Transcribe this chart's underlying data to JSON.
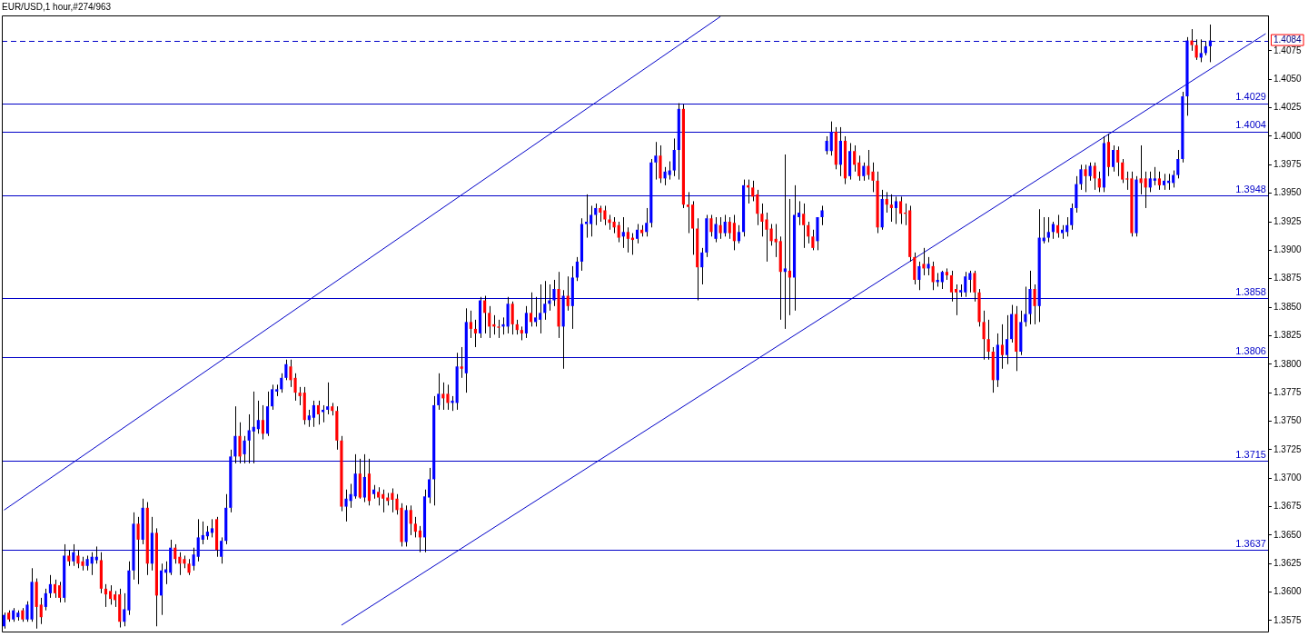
{
  "chart_data": {
    "type": "candlestick",
    "title": "EUR/USD,1 hour,#274/963",
    "categories": [
      null,
      null,
      null,
      null,
      null,
      null,
      null,
      null,
      null,
      null,
      null,
      null,
      null,
      null,
      null,
      null,
      null,
      null,
      null,
      null,
      null,
      null,
      null,
      null,
      null,
      null,
      null,
      null,
      null,
      null,
      null,
      null,
      null,
      null,
      null,
      null,
      null,
      null,
      null,
      null,
      null,
      null,
      null,
      null,
      null,
      null,
      null,
      null,
      null,
      null,
      null,
      null,
      null,
      null,
      null,
      null,
      null,
      null,
      null,
      null,
      null,
      null,
      null,
      null,
      null,
      null,
      null,
      null,
      null,
      null,
      null,
      null,
      null,
      null,
      null,
      null,
      null,
      null,
      null,
      null,
      null,
      null,
      null,
      null,
      null,
      null,
      null,
      null,
      null,
      null,
      null,
      null,
      null,
      null,
      null,
      null,
      null,
      null,
      null,
      null,
      null,
      null,
      null,
      null,
      null,
      null,
      null,
      null,
      null,
      null,
      null,
      null,
      null,
      null,
      null,
      null,
      null,
      null,
      null,
      null,
      null,
      null,
      null,
      null,
      null,
      null,
      null,
      null,
      null,
      null,
      null,
      null,
      null,
      null,
      null,
      null,
      null,
      null,
      null,
      null,
      null,
      null,
      null,
      null,
      null,
      null,
      null,
      null,
      null,
      null,
      null,
      null,
      null,
      null,
      null,
      null,
      null,
      null,
      null,
      null,
      null,
      null,
      null,
      null,
      null,
      null,
      null,
      null,
      null,
      null,
      null,
      null,
      null,
      null,
      null,
      null,
      null,
      null,
      null,
      null,
      null,
      null,
      null,
      null,
      null,
      null,
      null,
      null,
      null,
      null,
      null,
      null,
      null,
      null,
      null,
      null,
      null,
      null,
      null,
      null,
      null,
      null,
      null,
      null,
      null,
      null,
      null,
      null,
      null,
      null,
      null,
      null,
      null,
      null,
      null,
      null,
      null,
      null,
      null,
      null,
      null,
      null,
      null,
      null,
      null,
      null,
      null,
      null,
      null,
      null,
      null,
      null,
      null,
      null,
      null,
      null,
      null,
      null,
      null,
      null,
      null,
      null,
      null,
      null,
      null,
      null,
      null,
      null,
      null,
      null,
      null,
      null,
      null,
      null,
      null,
      null,
      null,
      null,
      null,
      null,
      null,
      null,
      null,
      null,
      null,
      null,
      null,
      null,
      null,
      null,
      null,
      null,
      null,
      null
    ],
    "ohlc": [
      [
        1.357,
        1.3582,
        1.3568,
        1.358
      ],
      [
        1.3582,
        1.3584,
        1.3574,
        1.3576
      ],
      [
        1.3576,
        1.3586,
        1.3574,
        1.3584
      ],
      [
        1.3578,
        1.3584,
        1.3575,
        1.3582
      ],
      [
        1.3584,
        1.3586,
        1.3574,
        1.3576
      ],
      [
        1.3576,
        1.3592,
        1.3574,
        1.3589
      ],
      [
        1.3576,
        1.3621,
        1.3574,
        1.3609
      ],
      [
        1.3609,
        1.3612,
        1.3568,
        1.3587
      ],
      [
        1.3589,
        1.3595,
        1.3572,
        1.3578
      ],
      [
        1.3587,
        1.3603,
        1.3584,
        1.3599
      ],
      [
        1.3599,
        1.3615,
        1.3595,
        1.3607
      ],
      [
        1.3607,
        1.3611,
        1.3595,
        1.3599
      ],
      [
        1.3606,
        1.3609,
        1.3591,
        1.3595
      ],
      [
        1.3595,
        1.3642,
        1.3591,
        1.3632
      ],
      [
        1.3632,
        1.3637,
        1.3623,
        1.3627
      ],
      [
        1.3627,
        1.3642,
        1.3623,
        1.3635
      ],
      [
        1.3632,
        1.3637,
        1.3621,
        1.3625
      ],
      [
        1.3627,
        1.3631,
        1.3619,
        1.3623
      ],
      [
        1.3623,
        1.3632,
        1.3619,
        1.3629
      ],
      [
        1.3625,
        1.3635,
        1.3615,
        1.3631
      ],
      [
        1.3628,
        1.364,
        1.3625,
        1.3631
      ],
      [
        1.3628,
        1.3635,
        1.3599,
        1.3603
      ],
      [
        1.3603,
        1.3607,
        1.3587,
        1.3598
      ],
      [
        1.3601,
        1.3606,
        1.3589,
        1.3594
      ],
      [
        1.3598,
        1.3601,
        1.3587,
        1.3593
      ],
      [
        1.3598,
        1.3603,
        1.3569,
        1.3574
      ],
      [
        1.3574,
        1.3599,
        1.357,
        1.3585
      ],
      [
        1.3584,
        1.3627,
        1.358,
        1.3619
      ],
      [
        1.3619,
        1.367,
        1.3611,
        1.366
      ],
      [
        1.366,
        1.3666,
        1.3607,
        1.3646
      ],
      [
        1.3646,
        1.3682,
        1.3642,
        1.3674
      ],
      [
        1.3674,
        1.3679,
        1.3615,
        1.3625
      ],
      [
        1.3625,
        1.3666,
        1.3619,
        1.3652
      ],
      [
        1.3652,
        1.3656,
        1.357,
        1.3597
      ],
      [
        1.3597,
        1.3625,
        1.358,
        1.3619
      ],
      [
        1.3617,
        1.3627,
        1.3607,
        1.362
      ],
      [
        1.3617,
        1.3646,
        1.3615,
        1.3639
      ],
      [
        1.3639,
        1.3642,
        1.3625,
        1.3629
      ],
      [
        1.3631,
        1.3635,
        1.3615,
        1.3625
      ],
      [
        1.3629,
        1.3632,
        1.3621,
        1.3625
      ],
      [
        1.3625,
        1.3629,
        1.3615,
        1.3617
      ],
      [
        1.3623,
        1.3639,
        1.3619,
        1.3633
      ],
      [
        1.3631,
        1.3664,
        1.3627,
        1.3648
      ],
      [
        1.3646,
        1.3662,
        1.3642,
        1.365
      ],
      [
        1.3649,
        1.3658,
        1.3646,
        1.3653
      ],
      [
        1.3652,
        1.3664,
        1.3648,
        1.3656
      ],
      [
        1.3664,
        1.3666,
        1.3631,
        1.3637
      ],
      [
        1.3631,
        1.3648,
        1.3625,
        1.3645
      ],
      [
        1.3645,
        1.3686,
        1.3642,
        1.3674
      ],
      [
        1.3674,
        1.3725,
        1.367,
        1.3719
      ],
      [
        1.3719,
        1.3763,
        1.3713,
        1.3737
      ],
      [
        1.3737,
        1.3749,
        1.3713,
        1.3719
      ],
      [
        1.3721,
        1.3737,
        1.3713,
        1.3733
      ],
      [
        1.3733,
        1.3756,
        1.3713,
        1.3742
      ],
      [
        1.3741,
        1.3776,
        1.3713,
        1.3745
      ],
      [
        1.3743,
        1.3768,
        1.3739,
        1.3751
      ],
      [
        1.3751,
        1.3764,
        1.3734,
        1.3739
      ],
      [
        1.3739,
        1.3776,
        1.3737,
        1.3763
      ],
      [
        1.3763,
        1.3782,
        1.376,
        1.3778
      ],
      [
        1.3776,
        1.3782,
        1.3772,
        1.3778
      ],
      [
        1.3778,
        1.3792,
        1.3775,
        1.3788
      ],
      [
        1.3788,
        1.3804,
        1.3786,
        1.38
      ],
      [
        1.3798,
        1.3804,
        1.378,
        1.3786
      ],
      [
        1.3788,
        1.3792,
        1.3768,
        1.3775
      ],
      [
        1.3775,
        1.378,
        1.3764,
        1.3772
      ],
      [
        1.3775,
        1.378,
        1.3747,
        1.3751
      ],
      [
        1.3751,
        1.376,
        1.3745,
        1.3755
      ],
      [
        1.3753,
        1.3768,
        1.3745,
        1.3764
      ],
      [
        1.3764,
        1.3768,
        1.3747,
        1.3756
      ],
      [
        1.3758,
        1.3764,
        1.3749,
        1.376
      ],
      [
        1.376,
        1.3784,
        1.3756,
        1.3763
      ],
      [
        1.3763,
        1.3766,
        1.3755,
        1.3759
      ],
      [
        1.3759,
        1.3763,
        1.3725,
        1.3733
      ],
      [
        1.3733,
        1.3737,
        1.3671,
        1.3675
      ],
      [
        1.3675,
        1.369,
        1.3662,
        1.3682
      ],
      [
        1.368,
        1.3695,
        1.3674,
        1.3686
      ],
      [
        1.3684,
        1.3721,
        1.3682,
        1.3704
      ],
      [
        1.3704,
        1.3717,
        1.3682,
        1.3683
      ],
      [
        1.3683,
        1.3721,
        1.3679,
        1.3701
      ],
      [
        1.3704,
        1.3717,
        1.3676,
        1.368
      ],
      [
        1.3686,
        1.3694,
        1.3682,
        1.369
      ],
      [
        1.3688,
        1.3692,
        1.3676,
        1.3683
      ],
      [
        1.3686,
        1.369,
        1.367,
        1.3682
      ],
      [
        1.3683,
        1.3687,
        1.3676,
        1.368
      ],
      [
        1.3687,
        1.3691,
        1.367,
        1.3681
      ],
      [
        1.3682,
        1.3686,
        1.3668,
        1.3672
      ],
      [
        1.3674,
        1.3678,
        1.364,
        1.3644
      ],
      [
        1.3644,
        1.3676,
        1.364,
        1.3672
      ],
      [
        1.3672,
        1.3676,
        1.365,
        1.366
      ],
      [
        1.366,
        1.3666,
        1.3648,
        1.3653
      ],
      [
        1.3654,
        1.3658,
        1.3635,
        1.3648
      ],
      [
        1.3648,
        1.369,
        1.3635,
        1.3684
      ],
      [
        1.3683,
        1.3709,
        1.3678,
        1.3699
      ],
      [
        1.3699,
        1.3772,
        1.3676,
        1.3764
      ],
      [
        1.3764,
        1.3792,
        1.376,
        1.3774
      ],
      [
        1.3774,
        1.3784,
        1.376,
        1.377
      ],
      [
        1.3774,
        1.3782,
        1.376,
        1.3766
      ],
      [
        1.3766,
        1.3772,
        1.3759,
        1.3768
      ],
      [
        1.3766,
        1.381,
        1.376,
        1.3798
      ],
      [
        1.3798,
        1.3815,
        1.3788,
        1.3796
      ],
      [
        1.3792,
        1.3849,
        1.3775,
        1.3837
      ],
      [
        1.3837,
        1.3847,
        1.3823,
        1.3831
      ],
      [
        1.3831,
        1.3839,
        1.3815,
        1.3827
      ],
      [
        1.3827,
        1.3859,
        1.3823,
        1.3856
      ],
      [
        1.3856,
        1.386,
        1.3827,
        1.3845
      ],
      [
        1.3845,
        1.3851,
        1.3823,
        1.3833
      ],
      [
        1.3835,
        1.3843,
        1.3826,
        1.3833
      ],
      [
        1.3833,
        1.3839,
        1.3823,
        1.3832
      ],
      [
        1.3833,
        1.3841,
        1.3826,
        1.3835
      ],
      [
        1.3833,
        1.3859,
        1.3827,
        1.3853
      ],
      [
        1.3853,
        1.3855,
        1.3826,
        1.3835
      ],
      [
        1.3835,
        1.3839,
        1.3826,
        1.383
      ],
      [
        1.383,
        1.3833,
        1.3821,
        1.3827
      ],
      [
        1.3827,
        1.3851,
        1.3823,
        1.3845
      ],
      [
        1.3845,
        1.3863,
        1.3833,
        1.3837
      ],
      [
        1.3837,
        1.3859,
        1.3833,
        1.3841
      ],
      [
        1.3839,
        1.387,
        1.3827,
        1.3845
      ],
      [
        1.3845,
        1.3873,
        1.3839,
        1.3853
      ],
      [
        1.3853,
        1.387,
        1.3847,
        1.3856
      ],
      [
        1.3856,
        1.3874,
        1.3851,
        1.3866
      ],
      [
        1.3866,
        1.3881,
        1.3823,
        1.3833
      ],
      [
        1.3833,
        1.3865,
        1.3796,
        1.386
      ],
      [
        1.386,
        1.3877,
        1.3847,
        1.3851
      ],
      [
        1.3851,
        1.3886,
        1.3831,
        1.3876
      ],
      [
        1.3876,
        1.3894,
        1.3873,
        1.389
      ],
      [
        1.389,
        1.3928,
        1.3882,
        1.3923
      ],
      [
        1.3923,
        1.3949,
        1.3911,
        1.3925
      ],
      [
        1.3923,
        1.3939,
        1.3912,
        1.3931
      ],
      [
        1.3931,
        1.3941,
        1.3922,
        1.3937
      ],
      [
        1.3937,
        1.3939,
        1.3925,
        1.3933
      ],
      [
        1.3935,
        1.3939,
        1.3922,
        1.3927
      ],
      [
        1.3927,
        1.3931,
        1.3918,
        1.3924
      ],
      [
        1.3925,
        1.3929,
        1.3915,
        1.392
      ],
      [
        1.3922,
        1.3925,
        1.3907,
        1.3911
      ],
      [
        1.3912,
        1.3929,
        1.3902,
        1.3916
      ],
      [
        1.3916,
        1.392,
        1.3898,
        1.391
      ],
      [
        1.3911,
        1.3915,
        1.3896,
        1.3909
      ],
      [
        1.391,
        1.3923,
        1.3906,
        1.3918
      ],
      [
        1.3918,
        1.3922,
        1.3912,
        1.3915
      ],
      [
        1.3916,
        1.3937,
        1.3912,
        1.3924
      ],
      [
        1.3924,
        1.398,
        1.392,
        1.3977
      ],
      [
        1.3977,
        1.3995,
        1.3962,
        1.3983
      ],
      [
        1.3983,
        1.3992,
        1.3959,
        1.3963
      ],
      [
        1.3963,
        1.3973,
        1.3957,
        1.3969
      ],
      [
        1.3966,
        1.3978,
        1.3962,
        1.397
      ],
      [
        1.397,
        1.3998,
        1.3965,
        1.3988
      ],
      [
        1.3988,
        1.4029,
        1.3962,
        1.4024
      ],
      [
        1.4024,
        1.4028,
        1.3937,
        1.394
      ],
      [
        1.394,
        1.3951,
        1.3915,
        1.3938
      ],
      [
        1.394,
        1.3943,
        1.3896,
        1.3919
      ],
      [
        1.3919,
        1.3928,
        1.3856,
        1.3885
      ],
      [
        1.3885,
        1.3902,
        1.387,
        1.3898
      ],
      [
        1.3898,
        1.3931,
        1.3894,
        1.3928
      ],
      [
        1.3928,
        1.3931,
        1.3912,
        1.3916
      ],
      [
        1.391,
        1.3929,
        1.3907,
        1.3923
      ],
      [
        1.3922,
        1.3929,
        1.391,
        1.3915
      ],
      [
        1.3915,
        1.3931,
        1.3912,
        1.3925
      ],
      [
        1.3925,
        1.3929,
        1.391,
        1.3915
      ],
      [
        1.3924,
        1.3931,
        1.39,
        1.3908
      ],
      [
        1.3908,
        1.3922,
        1.3906,
        1.3916
      ],
      [
        1.3916,
        1.3962,
        1.3912,
        1.3957
      ],
      [
        1.3957,
        1.3962,
        1.3941,
        1.3955
      ],
      [
        1.3955,
        1.3961,
        1.3943,
        1.3947
      ],
      [
        1.3949,
        1.3953,
        1.3922,
        1.3932
      ],
      [
        1.3932,
        1.3941,
        1.3912,
        1.3925
      ],
      [
        1.3927,
        1.3933,
        1.389,
        1.3918
      ],
      [
        1.3919,
        1.3923,
        1.3904,
        1.3908
      ],
      [
        1.391,
        1.3923,
        1.3894,
        1.3907
      ],
      [
        1.3908,
        1.3912,
        1.3839,
        1.3881
      ],
      [
        1.3881,
        1.3984,
        1.3831,
        1.3884
      ],
      [
        1.3882,
        1.3945,
        1.3843,
        1.3876
      ],
      [
        1.3876,
        1.3957,
        1.3847,
        1.3931
      ],
      [
        1.3929,
        1.3943,
        1.3922,
        1.3933
      ],
      [
        1.3932,
        1.3941,
        1.3902,
        1.3922
      ],
      [
        1.3922,
        1.3925,
        1.3906,
        1.3912
      ],
      [
        1.3912,
        1.3918,
        1.39,
        1.3902
      ],
      [
        1.3908,
        1.3929,
        1.39,
        1.3929
      ],
      [
        1.3929,
        1.3939,
        1.3922,
        1.3935
      ],
      [
        1.3987,
        1.4,
        1.3984,
        1.3996
      ],
      [
        1.3987,
        1.4013,
        1.3983,
        1.4004
      ],
      [
        1.4004,
        1.4008,
        1.3971,
        1.3975
      ],
      [
        1.3975,
        1.4008,
        1.3965,
        1.3996
      ],
      [
        1.3996,
        1.4,
        1.3958,
        1.3963
      ],
      [
        1.3965,
        1.3994,
        1.3962,
        1.3987
      ],
      [
        1.3987,
        1.3992,
        1.3969,
        1.3975
      ],
      [
        1.3977,
        1.3983,
        1.3961,
        1.3965
      ],
      [
        1.3965,
        1.3977,
        1.3961,
        1.3974
      ],
      [
        1.3974,
        1.3988,
        1.3962,
        1.3966
      ],
      [
        1.3969,
        1.3977,
        1.3951,
        1.3961
      ],
      [
        1.3961,
        1.3969,
        1.3915,
        1.392
      ],
      [
        1.392,
        1.3953,
        1.3918,
        1.3945
      ],
      [
        1.3945,
        1.3951,
        1.3933,
        1.394
      ],
      [
        1.394,
        1.3949,
        1.3925,
        1.3937
      ],
      [
        1.3937,
        1.3947,
        1.3923,
        1.3943
      ],
      [
        1.3943,
        1.3947,
        1.3923,
        1.3932
      ],
      [
        1.3933,
        1.3941,
        1.3922,
        1.3932
      ],
      [
        1.3935,
        1.3939,
        1.389,
        1.3894
      ],
      [
        1.3894,
        1.3898,
        1.387,
        1.3874
      ],
      [
        1.3874,
        1.389,
        1.3865,
        1.3886
      ],
      [
        1.3888,
        1.3902,
        1.3878,
        1.3884
      ],
      [
        1.3884,
        1.3894,
        1.3878,
        1.3888
      ],
      [
        1.3886,
        1.389,
        1.3865,
        1.3872
      ],
      [
        1.3872,
        1.388,
        1.3868,
        1.3874
      ],
      [
        1.3872,
        1.3882,
        1.3866,
        1.3881
      ],
      [
        1.3881,
        1.3884,
        1.3874,
        1.3878
      ],
      [
        1.3878,
        1.3882,
        1.3855,
        1.3863
      ],
      [
        1.3866,
        1.387,
        1.3843,
        1.3863
      ],
      [
        1.3863,
        1.387,
        1.3859,
        1.3865
      ],
      [
        1.3863,
        1.3881,
        1.3859,
        1.3877
      ],
      [
        1.3874,
        1.3882,
        1.3863,
        1.388
      ],
      [
        1.388,
        1.3882,
        1.3855,
        1.3863
      ],
      [
        1.3863,
        1.3866,
        1.3833,
        1.3837
      ],
      [
        1.3837,
        1.3847,
        1.3804,
        1.3822
      ],
      [
        1.3822,
        1.3839,
        1.3804,
        1.3811
      ],
      [
        1.3811,
        1.3815,
        1.3775,
        1.3786
      ],
      [
        1.3786,
        1.3827,
        1.378,
        1.3817
      ],
      [
        1.3817,
        1.3835,
        1.3796,
        1.3808
      ],
      [
        1.3808,
        1.3843,
        1.38,
        1.3822
      ],
      [
        1.3822,
        1.3852,
        1.3819,
        1.3844
      ],
      [
        1.3844,
        1.3851,
        1.3794,
        1.3811
      ],
      [
        1.3811,
        1.3847,
        1.3808,
        1.3837
      ],
      [
        1.3837,
        1.3868,
        1.3833,
        1.3844
      ],
      [
        1.3844,
        1.3882,
        1.3835,
        1.3866
      ],
      [
        1.3866,
        1.387,
        1.3835,
        1.3851
      ],
      [
        1.3851,
        1.3936,
        1.3837,
        1.3911
      ],
      [
        1.3908,
        1.3929,
        1.3906,
        1.3911
      ],
      [
        1.3911,
        1.3929,
        1.3907,
        1.3916
      ],
      [
        1.3916,
        1.3925,
        1.391,
        1.3923
      ],
      [
        1.3922,
        1.3931,
        1.3911,
        1.3915
      ],
      [
        1.3915,
        1.3922,
        1.391,
        1.3918
      ],
      [
        1.3916,
        1.3929,
        1.3912,
        1.3922
      ],
      [
        1.3922,
        1.3941,
        1.3918,
        1.3937
      ],
      [
        1.3937,
        1.3965,
        1.3933,
        1.3958
      ],
      [
        1.3958,
        1.3975,
        1.3953,
        1.3971
      ],
      [
        1.3971,
        1.3975,
        1.3951,
        1.3965
      ],
      [
        1.3965,
        1.3977,
        1.3961,
        1.3974
      ],
      [
        1.3974,
        1.3977,
        1.3953,
        1.3963
      ],
      [
        1.3963,
        1.3969,
        1.3951,
        1.3955
      ],
      [
        1.3955,
        1.4,
        1.3951,
        1.3994
      ],
      [
        1.3995,
        1.4002,
        1.3965,
        1.3973
      ],
      [
        1.3973,
        1.3992,
        1.3969,
        1.3988
      ],
      [
        1.3988,
        1.3991,
        1.3965,
        1.3977
      ],
      [
        1.3977,
        1.398,
        1.3959,
        1.3962
      ],
      [
        1.3963,
        1.3969,
        1.3953,
        1.3962
      ],
      [
        1.3963,
        1.3969,
        1.3912,
        1.3915
      ],
      [
        1.3915,
        1.3965,
        1.3912,
        1.3962
      ],
      [
        1.3963,
        1.3992,
        1.3949,
        1.3959
      ],
      [
        1.3963,
        1.3969,
        1.3937,
        1.3955
      ],
      [
        1.3955,
        1.3969,
        1.3951,
        1.3963
      ],
      [
        1.3961,
        1.3973,
        1.3957,
        1.3963
      ],
      [
        1.3963,
        1.3969,
        1.3953,
        1.3957
      ],
      [
        1.3957,
        1.3967,
        1.3953,
        1.3961
      ],
      [
        1.3959,
        1.3967,
        1.3953,
        1.3961
      ],
      [
        1.3959,
        1.397,
        1.3955,
        1.3966
      ],
      [
        1.3966,
        1.3988,
        1.3963,
        1.398
      ],
      [
        1.398,
        1.4039,
        1.3977,
        1.4035
      ],
      [
        1.4035,
        1.4087,
        1.4018,
        1.4084
      ],
      [
        1.4084,
        1.4094,
        1.4075,
        1.408
      ],
      [
        1.408,
        1.4085,
        1.4067,
        1.4069
      ],
      [
        1.4069,
        1.4085,
        1.4065,
        1.4073
      ],
      [
        1.4073,
        1.4083,
        1.4071,
        1.4079
      ],
      [
        1.4079,
        1.4098,
        1.4065,
        1.4084
      ],
      null,
      null,
      null,
      null,
      null,
      null,
      null,
      null,
      null,
      null,
      null,
      null
    ],
    "colors": [
      "#0000ff",
      "#ff0000",
      "#0000ff",
      "#0000ff",
      "#ff0000",
      "#0000ff",
      "#0000ff",
      "#ff0000",
      "#ff0000",
      "#0000ff",
      "#0000ff",
      "#ff0000",
      "#ff0000",
      "#0000ff",
      "#ff0000",
      "#0000ff",
      "#ff0000",
      "#ff0000",
      "#0000ff",
      "#0000ff",
      "#0000ff",
      "#ff0000",
      "#ff0000",
      "#ff0000",
      "#ff0000",
      "#ff0000",
      "#0000ff",
      "#0000ff",
      "#0000ff",
      "#ff0000",
      "#0000ff",
      "#ff0000",
      "#0000ff",
      "#ff0000",
      "#0000ff",
      "#0000ff",
      "#0000ff",
      "#ff0000",
      "#ff0000",
      "#ff0000",
      "#ff0000",
      "#0000ff",
      "#0000ff",
      "#0000ff",
      "#0000ff",
      "#0000ff",
      "#ff0000",
      "#0000ff",
      "#0000ff",
      "#0000ff",
      "#0000ff",
      "#ff0000",
      "#0000ff",
      "#0000ff",
      "#0000ff",
      "#0000ff",
      "#ff0000",
      "#0000ff",
      "#0000ff",
      "#0000ff",
      "#0000ff",
      "#0000ff",
      "#ff0000",
      "#ff0000",
      "#ff0000",
      "#ff0000",
      "#0000ff",
      "#0000ff",
      "#ff0000",
      "#0000ff",
      "#0000ff",
      "#ff0000",
      "#ff0000",
      "#ff0000",
      "#0000ff",
      "#0000ff",
      "#0000ff",
      "#ff0000",
      "#0000ff",
      "#ff0000",
      "#0000ff",
      "#ff0000",
      "#ff0000",
      "#ff0000",
      "#ff0000",
      "#ff0000",
      "#ff0000",
      "#0000ff",
      "#ff0000",
      "#ff0000",
      "#ff0000",
      "#0000ff",
      "#0000ff",
      "#0000ff",
      "#0000ff",
      "#ff0000",
      "#ff0000",
      "#0000ff",
      "#0000ff",
      "#ff0000",
      "#0000ff",
      "#ff0000",
      "#ff0000",
      "#0000ff",
      "#ff0000",
      "#ff0000",
      "#ff0000",
      "#ff0000",
      "#0000ff",
      "#0000ff",
      "#ff0000",
      "#ff0000",
      "#ff0000",
      "#0000ff",
      "#ff0000",
      "#0000ff",
      "#0000ff",
      "#0000ff",
      "#0000ff",
      "#0000ff",
      "#ff0000",
      "#0000ff",
      "#ff0000",
      "#0000ff",
      "#0000ff",
      "#0000ff",
      "#0000ff",
      "#0000ff",
      "#0000ff",
      "#ff0000",
      "#ff0000",
      "#ff0000",
      "#ff0000",
      "#ff0000",
      "#0000ff",
      "#ff0000",
      "#ff0000",
      "#0000ff",
      "#ff0000",
      "#0000ff",
      "#0000ff",
      "#0000ff",
      "#ff0000",
      "#0000ff",
      "#0000ff",
      "#0000ff",
      "#0000ff",
      "#ff0000",
      "#ff0000",
      "#ff0000",
      "#ff0000",
      "#0000ff",
      "#0000ff",
      "#ff0000",
      "#0000ff",
      "#ff0000",
      "#0000ff",
      "#ff0000",
      "#ff0000",
      "#0000ff",
      "#0000ff",
      "#ff0000",
      "#ff0000",
      "#ff0000",
      "#ff0000",
      "#ff0000",
      "#ff0000",
      "#ff0000",
      "#ff0000",
      "#0000ff",
      "#ff0000",
      "#0000ff",
      "#0000ff",
      "#ff0000",
      "#ff0000",
      "#ff0000",
      "#0000ff",
      "#0000ff",
      "#0000ff",
      "#0000ff",
      "#ff0000",
      "#0000ff",
      "#ff0000",
      "#0000ff",
      "#ff0000",
      "#ff0000",
      "#0000ff",
      "#ff0000",
      "#ff0000",
      "#ff0000",
      "#0000ff",
      "#ff0000",
      "#ff0000",
      "#0000ff",
      "#ff0000",
      "#ff0000",
      "#ff0000",
      "#ff0000",
      "#0000ff",
      "#ff0000",
      "#0000ff",
      "#ff0000",
      "#0000ff",
      "#0000ff",
      "#ff0000",
      "#ff0000",
      "#ff0000",
      "#0000ff",
      "#0000ff",
      "#0000ff",
      "#ff0000",
      "#ff0000",
      "#ff0000",
      "#ff0000",
      "#ff0000",
      "#0000ff",
      "#ff0000",
      "#0000ff",
      "#0000ff",
      "#ff0000",
      "#0000ff",
      "#0000ff",
      "#0000ff",
      "#ff0000",
      "#0000ff",
      "#0000ff",
      "#0000ff",
      "#0000ff",
      "#ff0000",
      "#0000ff",
      "#0000ff",
      "#0000ff",
      "#0000ff",
      "#0000ff",
      "#ff0000",
      "#0000ff",
      "#ff0000",
      "#ff0000",
      "#0000ff",
      "#ff0000",
      "#0000ff",
      "#ff0000",
      "#ff0000",
      "#ff0000",
      "#ff0000",
      "#0000ff",
      "#ff0000",
      "#ff0000",
      "#0000ff",
      "#0000ff",
      "#ff0000",
      "#0000ff",
      "#0000ff",
      "#0000ff",
      "#0000ff",
      "#0000ff",
      "#0000ff",
      "#ff0000",
      "#ff0000",
      "#0000ff",
      "#0000ff",
      "#0000ff",
      null,
      null,
      null,
      null,
      null,
      null,
      null,
      null,
      null,
      null,
      null,
      null
    ],
    "series": [
      {
        "type": "line",
        "color": "#0000c8",
        "values": [
          1.3672,
          null,
          null,
          null,
          null,
          null,
          null,
          null,
          null,
          null,
          null,
          null,
          null,
          null,
          null,
          null,
          null,
          null,
          null,
          null,
          null,
          null,
          null,
          null,
          null,
          null,
          null,
          null,
          null,
          null,
          null,
          null,
          null,
          null,
          null,
          null,
          null,
          null,
          null,
          null,
          null,
          null,
          null,
          null,
          null,
          null,
          null,
          null,
          null,
          null,
          null,
          null,
          null,
          null,
          null,
          null,
          null,
          null,
          null,
          null,
          null,
          null,
          null,
          null,
          null,
          null,
          null,
          null,
          null,
          null,
          null,
          null,
          null,
          null,
          null,
          null,
          null,
          null,
          null,
          null,
          null,
          null,
          null,
          null,
          null,
          null,
          null,
          null,
          null,
          null,
          null,
          null,
          null,
          null,
          null,
          null,
          null,
          null,
          null,
          null,
          null,
          null,
          null,
          null,
          null,
          null,
          null,
          null,
          null,
          null,
          null,
          null,
          null,
          null,
          null,
          null,
          null,
          null,
          null,
          null,
          null,
          null,
          null,
          null,
          null,
          null,
          null,
          null,
          null,
          null,
          null,
          null,
          null,
          null,
          null,
          null,
          null,
          null,
          null,
          null,
          null,
          null,
          null,
          null,
          null,
          null,
          null,
          null,
          null,
          null,
          null,
          null,
          null,
          null,
          null,
          1.4105,
          null,
          null,
          null,
          null,
          null,
          null,
          null,
          null,
          null,
          null,
          null,
          null,
          null,
          null,
          null,
          null,
          null,
          null,
          null,
          null,
          null,
          null,
          null,
          null,
          null,
          null,
          null,
          null,
          null,
          null,
          null,
          null,
          null,
          null,
          null,
          null,
          null,
          null,
          null,
          null,
          null,
          null,
          null,
          null,
          null,
          null,
          null,
          null,
          null,
          null,
          null,
          null,
          null,
          null,
          null,
          null,
          null,
          null,
          null,
          null,
          null,
          null,
          null,
          null,
          null,
          null,
          null,
          null,
          null,
          null,
          null,
          null,
          null,
          null,
          null,
          null,
          null,
          null,
          null,
          null,
          null,
          null,
          null,
          null,
          null,
          null,
          null,
          null,
          null,
          null,
          null,
          null,
          null,
          null,
          null,
          null,
          null,
          null,
          null,
          null,
          null,
          null,
          null,
          null,
          null,
          null,
          null,
          null,
          null,
          null,
          null,
          null,
          null,
          null,
          null,
          null,
          null,
          null
        ]
      },
      {
        "type": "line",
        "color": "#0000c8",
        "values": [
          null,
          null,
          null,
          null,
          null,
          null,
          null,
          null,
          null,
          null,
          null,
          null,
          null,
          null,
          null,
          null,
          null,
          null,
          null,
          null,
          null,
          null,
          null,
          null,
          null,
          null,
          null,
          null,
          null,
          null,
          null,
          null,
          null,
          null,
          null,
          null,
          null,
          null,
          null,
          null,
          null,
          null,
          null,
          null,
          null,
          null,
          null,
          null,
          null,
          null,
          null,
          null,
          null,
          null,
          null,
          null,
          null,
          null,
          null,
          null,
          null,
          null,
          null,
          null,
          null,
          null,
          null,
          null,
          null,
          null,
          null,
          null,
          null,
          1.3571,
          null,
          null,
          null,
          null,
          null,
          null,
          null,
          null,
          null,
          null,
          null,
          null,
          null,
          null,
          null,
          null,
          null,
          null,
          null,
          null,
          null,
          null,
          null,
          null,
          null,
          null,
          null,
          null,
          null,
          null,
          null,
          null,
          null,
          null,
          null,
          null,
          null,
          null,
          null,
          null,
          null,
          null,
          null,
          null,
          null,
          null,
          null,
          null,
          null,
          null,
          null,
          null,
          null,
          null,
          null,
          null,
          null,
          null,
          null,
          null,
          null,
          null,
          null,
          null,
          null,
          null,
          null,
          null,
          null,
          null,
          null,
          null,
          null,
          null,
          null,
          null,
          null,
          null,
          null,
          null,
          null,
          null,
          null,
          null,
          null,
          null,
          null,
          null,
          null,
          null,
          null,
          null,
          null,
          null,
          null,
          null,
          null,
          null,
          null,
          null,
          null,
          null,
          null,
          null,
          null,
          null,
          null,
          null,
          null,
          null,
          null,
          null,
          null,
          null,
          null,
          null,
          null,
          null,
          null,
          null,
          null,
          null,
          null,
          null,
          null,
          null,
          null,
          null,
          null,
          null,
          null,
          null,
          null,
          null,
          null,
          null,
          null,
          null,
          null,
          null,
          null,
          null,
          null,
          null,
          null,
          null,
          null,
          null,
          null,
          null,
          null,
          null,
          null,
          null,
          null,
          null,
          null,
          null,
          null,
          null,
          null,
          null,
          null,
          null,
          null,
          null,
          null,
          null,
          null,
          null,
          null,
          null,
          null,
          null,
          null,
          null,
          null,
          null,
          null,
          null,
          null,
          null,
          null,
          null,
          null,
          null,
          null,
          null,
          null,
          null,
          null,
          null,
          null,
          null,
          null,
          null,
          null,
          null,
          null,
          1.409
        ]
      }
    ],
    "ylim": [
      1.3567,
      1.4106
    ],
    "yticks": [
      1.3575,
      {
        "value": 1.36,
        "label": "1.3600"
      },
      1.3625,
      {
        "value": 1.365,
        "label": "1.3650"
      },
      1.3675,
      {
        "value": 1.37,
        "label": "1.3700"
      },
      1.3725,
      {
        "value": 1.375,
        "label": "1.3750"
      },
      1.3775,
      {
        "value": 1.38,
        "label": "1.3800"
      },
      1.3825,
      {
        "value": 1.385,
        "label": "1.3850"
      },
      1.3875,
      {
        "value": 1.39,
        "label": "1.3900"
      },
      1.3925,
      {
        "value": 1.395,
        "label": "1.3950"
      },
      1.3975,
      {
        "value": 1.4,
        "label": "1.4000"
      },
      1.4025,
      {
        "value": 1.405,
        "label": "1.4050"
      },
      1.4075
    ],
    "ref_lines": [
      {
        "axis": "y",
        "value": 1.4084,
        "label": "1.4084",
        "color": "#0000c8",
        "line_style": "dashed"
      },
      {
        "axis": "y",
        "value": 1.4029,
        "label": "1.4029",
        "color": "#0000c8"
      },
      {
        "axis": "y",
        "value": 1.4004,
        "label": "1.4004",
        "color": "#0000c8"
      },
      {
        "axis": "y",
        "value": 1.3948,
        "label": "1.3948",
        "color": "#0000c8"
      },
      {
        "axis": "y",
        "value": 1.3858,
        "label": "1.3858",
        "color": "#0000c8"
      },
      {
        "axis": "y",
        "value": 1.3806,
        "label": "1.3806",
        "color": "#0000c8"
      },
      {
        "axis": "y",
        "value": 1.3715,
        "label": "1.3715",
        "color": "#0000c8"
      },
      {
        "axis": "y",
        "value": 1.3637,
        "label": "1.3637",
        "color": "#0000c8"
      }
    ],
    "grid": false,
    "legend": false,
    "tick_labels": "y"
  }
}
